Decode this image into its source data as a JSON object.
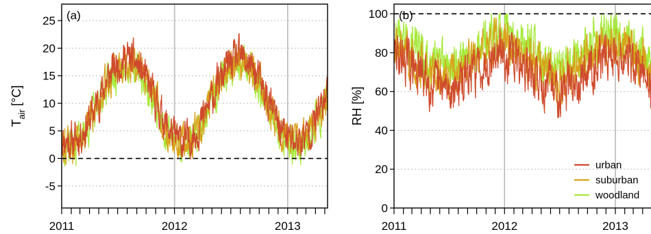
{
  "colors": {
    "urban": "#cf4a2c",
    "suburban": "#d9a21b",
    "woodland": "#a6ea3a",
    "grid": "#bdbdbd",
    "year_line": "#b8b8b8",
    "axis": "#000000"
  },
  "chart_data": [
    {
      "type": "line",
      "panel_label": "(a)",
      "ylabel_main": "T",
      "ylabel_sub": "air",
      "ylabel_unit": " [°C]",
      "x_range": [
        "2011-01-01",
        "2013-05-10"
      ],
      "x_tick_labels": [
        "2011",
        "2012",
        "2013"
      ],
      "x_tick_years": [
        2011,
        2012,
        2013
      ],
      "ylim": [
        -9,
        28
      ],
      "yticks": [
        -5,
        0,
        5,
        10,
        15,
        20,
        25
      ],
      "ytick_labels": [
        "-5",
        "0",
        "5",
        "10",
        "15",
        "20",
        "25"
      ],
      "reference_line": 0,
      "grid": "horizontal dotted",
      "series": [
        {
          "name": "urban",
          "approx": {
            "mean": 10.2,
            "amplitude": 7.5,
            "peak_day": 210,
            "noise": 2.6,
            "offset": 0.4,
            "min": -5,
            "max": 25.5
          }
        },
        {
          "name": "suburban",
          "approx": {
            "mean": 10.2,
            "amplitude": 7.5,
            "peak_day": 210,
            "noise": 2.6,
            "offset": 0.0,
            "min": -5,
            "max": 25.5
          }
        },
        {
          "name": "woodland",
          "approx": {
            "mean": 10.2,
            "amplitude": 7.5,
            "peak_day": 210,
            "noise": 2.6,
            "offset": -0.5,
            "min": -5,
            "max": 25.5
          }
        }
      ]
    },
    {
      "type": "line",
      "panel_label": "(b)",
      "ylabel_main": "RH",
      "ylabel_sub": "",
      "ylabel_unit": " [%]",
      "x_range": [
        "2011-01-01",
        "2013-05-10"
      ],
      "x_tick_labels": [
        "2011",
        "2012",
        "2013"
      ],
      "x_tick_years": [
        2011,
        2012,
        2013
      ],
      "ylim": [
        0,
        105
      ],
      "yticks": [
        0,
        20,
        40,
        60,
        80,
        100
      ],
      "ytick_labels": [
        "0",
        "20",
        "40",
        "60",
        "80",
        "100"
      ],
      "reference_line": 100,
      "grid": "horizontal dotted",
      "legend": {
        "position": "bottom-right",
        "entries": [
          "urban",
          "suburban",
          "woodland"
        ]
      },
      "series": [
        {
          "name": "urban",
          "approx": {
            "mean": 74,
            "amplitude": 9,
            "peak_day": 355,
            "noise": 9,
            "offset": -4,
            "min": 38,
            "max": 97
          }
        },
        {
          "name": "suburban",
          "approx": {
            "mean": 74,
            "amplitude": 9,
            "peak_day": 355,
            "noise": 9,
            "offset": 2,
            "min": 38,
            "max": 98
          }
        },
        {
          "name": "woodland",
          "approx": {
            "mean": 74,
            "amplitude": 9,
            "peak_day": 355,
            "noise": 9,
            "offset": 7,
            "min": 38,
            "max": 100
          }
        }
      ]
    }
  ]
}
